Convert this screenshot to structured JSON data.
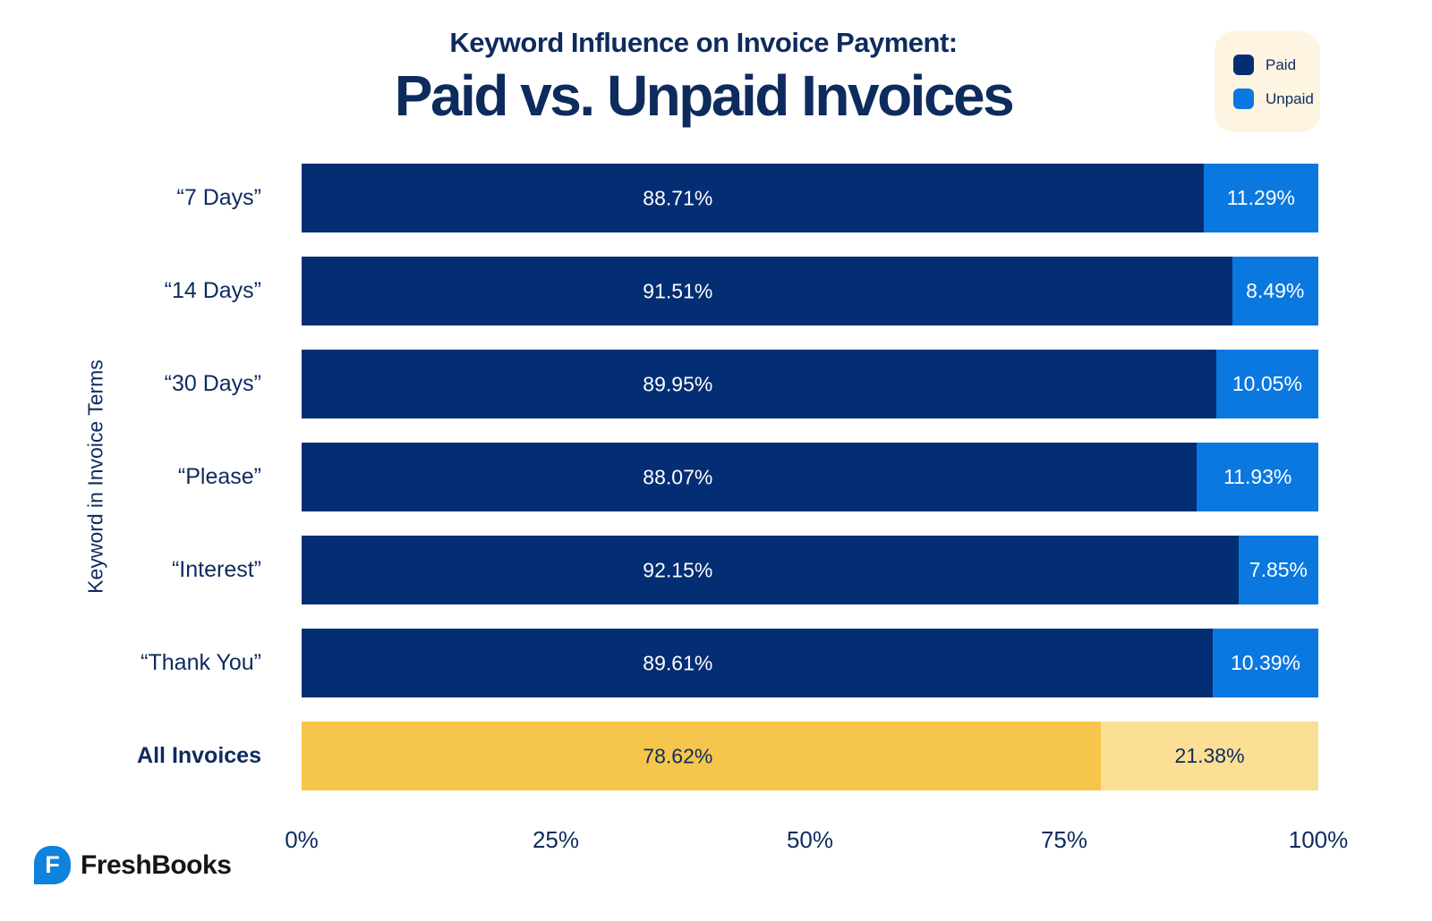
{
  "header": {
    "subtitle": "Keyword Influence on Invoice Payment:",
    "title": "Paid vs. Unpaid Invoices"
  },
  "legend": {
    "items": [
      {
        "label": "Paid",
        "color": "#032e73"
      },
      {
        "label": "Unpaid",
        "color": "#0b78e0"
      }
    ]
  },
  "footer": {
    "brand": "FreshBooks",
    "logo_letter": "F"
  },
  "colors": {
    "navy": "#032e73",
    "blue": "#0b78e0",
    "gold": "#f5c64b",
    "pale_gold": "#fbdf94",
    "cream": "#fdf5e1",
    "text_navy": "#0e2b5e",
    "logo_blue": "#0d83dd"
  },
  "palettes": {
    "blue": {
      "paid_bg": "#032e73",
      "paid_text": "#ffffff",
      "unpaid_bg": "#0b78e0",
      "unpaid_text": "#ffffff"
    },
    "gold": {
      "paid_bg": "#f5c64b",
      "paid_text": "#0e2b5e",
      "unpaid_bg": "#fbdf94",
      "unpaid_text": "#0e2b5e"
    }
  },
  "chart_data": {
    "type": "bar",
    "orientation": "horizontal_stacked",
    "title": "Keyword Influence on Invoice Payment: Paid vs. Unpaid Invoices",
    "xlabel": "",
    "ylabel": "Keyword in Invoice Terms",
    "xlim": [
      0,
      100
    ],
    "x_ticks": [
      "0%",
      "25%",
      "50%",
      "75%",
      "100%"
    ],
    "grid": false,
    "legend_position": "top-right",
    "categories": [
      "“7 Days”",
      "“14 Days”",
      "“30 Days”",
      "“Please”",
      "“Interest”",
      "“Thank You”",
      "All Invoices"
    ],
    "series": [
      {
        "name": "Paid",
        "values": [
          88.71,
          91.51,
          89.95,
          88.07,
          92.15,
          89.61,
          78.62
        ]
      },
      {
        "name": "Unpaid",
        "values": [
          11.29,
          8.49,
          10.05,
          11.93,
          7.85,
          10.39,
          21.38
        ]
      }
    ],
    "rows": [
      {
        "label": "“7 Days”",
        "paid": 88.71,
        "paid_label": "88.71%",
        "unpaid": 11.29,
        "unpaid_label": "11.29%",
        "palette": "blue",
        "bold": false
      },
      {
        "label": "“14 Days”",
        "paid": 91.51,
        "paid_label": "91.51%",
        "unpaid": 8.49,
        "unpaid_label": "8.49%",
        "palette": "blue",
        "bold": false
      },
      {
        "label": "“30 Days”",
        "paid": 89.95,
        "paid_label": "89.95%",
        "unpaid": 10.05,
        "unpaid_label": "10.05%",
        "palette": "blue",
        "bold": false
      },
      {
        "label": "“Please”",
        "paid": 88.07,
        "paid_label": "88.07%",
        "unpaid": 11.93,
        "unpaid_label": "11.93%",
        "palette": "blue",
        "bold": false
      },
      {
        "label": "“Interest”",
        "paid": 92.15,
        "paid_label": "92.15%",
        "unpaid": 7.85,
        "unpaid_label": "7.85%",
        "palette": "blue",
        "bold": false
      },
      {
        "label": "“Thank You”",
        "paid": 89.61,
        "paid_label": "89.61%",
        "unpaid": 10.39,
        "unpaid_label": "10.39%",
        "palette": "blue",
        "bold": false
      },
      {
        "label": "All Invoices",
        "paid": 78.62,
        "paid_label": "78.62%",
        "unpaid": 21.38,
        "unpaid_label": "21.38%",
        "palette": "gold",
        "bold": true
      }
    ]
  }
}
